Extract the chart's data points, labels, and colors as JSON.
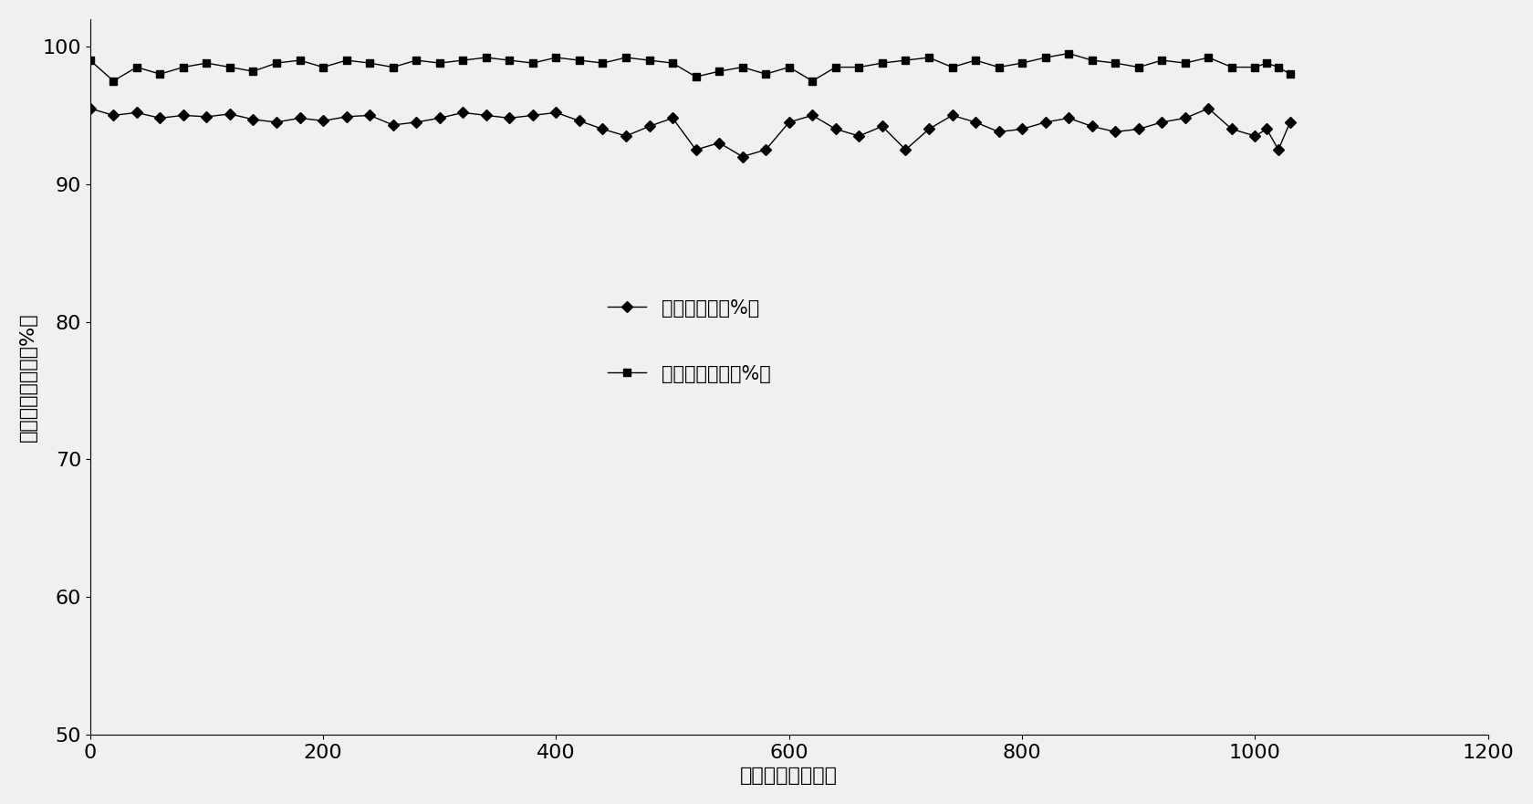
{
  "title": "",
  "xlabel": "反应时间（小时）",
  "ylabel": "转化率、选择性（%）",
  "xlim": [
    0,
    1200
  ],
  "ylim": [
    50,
    102
  ],
  "yticks": [
    50,
    60,
    70,
    80,
    90,
    100
  ],
  "xticks": [
    0,
    200,
    400,
    600,
    800,
    1000,
    1200
  ],
  "legend1": "硒酸转化率（%）",
  "legend2": "硒基苯选择性（%）",
  "hno3_x": [
    0,
    20,
    40,
    60,
    80,
    100,
    120,
    140,
    160,
    180,
    200,
    220,
    240,
    260,
    280,
    300,
    320,
    340,
    360,
    380,
    400,
    420,
    440,
    460,
    480,
    500,
    520,
    540,
    560,
    580,
    600,
    620,
    640,
    660,
    680,
    700,
    720,
    740,
    760,
    780,
    800,
    820,
    840,
    860,
    880,
    900,
    920,
    940,
    960,
    980,
    1000,
    1010,
    1020,
    1030
  ],
  "hno3_y": [
    95.5,
    95.0,
    95.2,
    94.8,
    95.0,
    94.9,
    95.1,
    94.7,
    94.5,
    94.8,
    94.6,
    94.9,
    95.0,
    94.3,
    94.5,
    94.8,
    95.2,
    95.0,
    94.8,
    95.0,
    95.2,
    94.6,
    94.0,
    93.5,
    94.2,
    94.8,
    92.5,
    93.0,
    92.0,
    92.5,
    94.5,
    95.0,
    94.0,
    93.5,
    94.2,
    92.5,
    94.0,
    95.0,
    94.5,
    93.8,
    94.0,
    94.5,
    94.8,
    94.2,
    93.8,
    94.0,
    94.5,
    94.8,
    95.5,
    94.0,
    93.5,
    94.0,
    92.5,
    94.5
  ],
  "nb_x": [
    0,
    20,
    40,
    60,
    80,
    100,
    120,
    140,
    160,
    180,
    200,
    220,
    240,
    260,
    280,
    300,
    320,
    340,
    360,
    380,
    400,
    420,
    440,
    460,
    480,
    500,
    520,
    540,
    560,
    580,
    600,
    620,
    640,
    660,
    680,
    700,
    720,
    740,
    760,
    780,
    800,
    820,
    840,
    860,
    880,
    900,
    920,
    940,
    960,
    980,
    1000,
    1010,
    1020,
    1030
  ],
  "nb_y": [
    99.0,
    97.5,
    98.5,
    98.0,
    98.5,
    98.8,
    98.5,
    98.2,
    98.8,
    99.0,
    98.5,
    99.0,
    98.8,
    98.5,
    99.0,
    98.8,
    99.0,
    99.2,
    99.0,
    98.8,
    99.2,
    99.0,
    98.8,
    99.2,
    99.0,
    98.8,
    97.8,
    98.2,
    98.5,
    98.0,
    98.5,
    97.5,
    98.5,
    98.5,
    98.8,
    99.0,
    99.2,
    98.5,
    99.0,
    98.5,
    98.8,
    99.2,
    99.5,
    99.0,
    98.8,
    98.5,
    99.0,
    98.8,
    99.2,
    98.5,
    98.5,
    98.8,
    98.5,
    98.0
  ],
  "line_color": "#000000",
  "bg_color": "#f0f0f0",
  "font_size": 16,
  "legend_fontsize": 15,
  "tick_fontsize": 16
}
